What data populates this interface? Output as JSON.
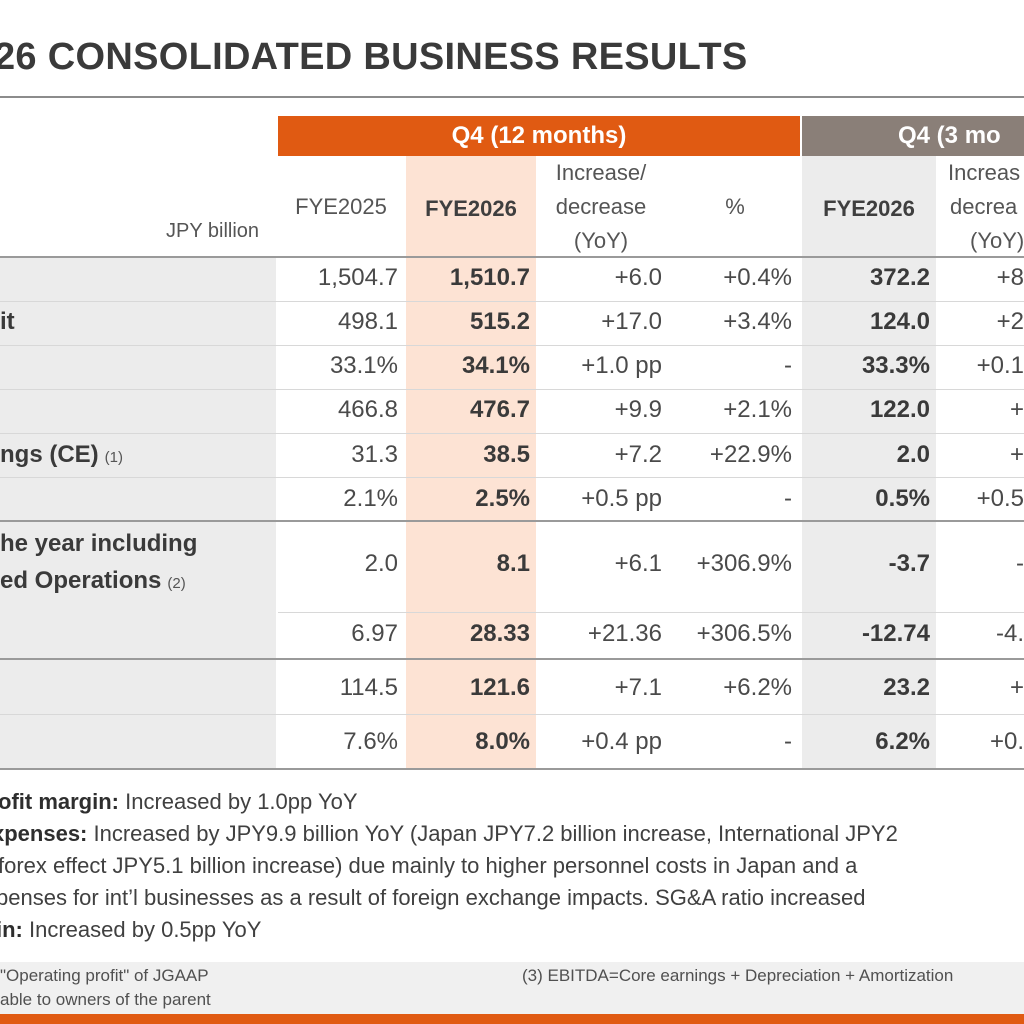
{
  "title": "26 CONSOLIDATED BUSINESS RESULTS",
  "table": {
    "group_12m": "Q4 (12 months)",
    "group_3m": "Q4 (3 mo",
    "unit": "JPY billion",
    "columns": {
      "fye2025": "FYE2025",
      "fye2026": "FYE2026",
      "incdec": [
        "Increase/",
        "decrease",
        "(YoY)"
      ],
      "pct": "%",
      "fye2026_3m": "FYE2026",
      "incdec_3m": [
        "Increas",
        "decrea",
        "(YoY)"
      ]
    },
    "rows": [
      {
        "label": "",
        "note": "",
        "fye2025": "1,504.7",
        "fye2026": "1,510.7",
        "yoy": "+6.0",
        "pct": "+0.4%",
        "q3m": "372.2",
        "q3m_yoy": "+8"
      },
      {
        "label": "it",
        "note": "",
        "fye2025": "498.1",
        "fye2026": "515.2",
        "yoy": "+17.0",
        "pct": "+3.4%",
        "q3m": "124.0",
        "q3m_yoy": "+2"
      },
      {
        "label": "",
        "note": "",
        "fye2025": "33.1%",
        "fye2026": "34.1%",
        "yoy": "+1.0 pp",
        "pct": "-",
        "q3m": "33.3%",
        "q3m_yoy": "+0.1"
      },
      {
        "label": "",
        "note": "",
        "fye2025": "466.8",
        "fye2026": "476.7",
        "yoy": "+9.9",
        "pct": "+2.1%",
        "q3m": "122.0",
        "q3m_yoy": "+"
      },
      {
        "label": "ngs (CE)",
        "note": "(1)",
        "fye2025": "31.3",
        "fye2026": "38.5",
        "yoy": "+7.2",
        "pct": "+22.9%",
        "q3m": "2.0",
        "q3m_yoy": "+"
      },
      {
        "label": "",
        "note": "",
        "fye2025": "2.1%",
        "fye2026": "2.5%",
        "yoy": "+0.5 pp",
        "pct": "-",
        "q3m": "0.5%",
        "q3m_yoy": "+0.5"
      },
      {
        "label": "he year including",
        "label2": "ed Operations",
        "note": "(2)",
        "fye2025": "2.0",
        "fye2026": "8.1",
        "yoy": "+6.1",
        "pct": "+306.9%",
        "q3m": "-3.7",
        "q3m_yoy": "-"
      },
      {
        "label": "",
        "note": "",
        "fye2025": "6.97",
        "fye2026": "28.33",
        "yoy": "+21.36",
        "pct": "+306.5%",
        "q3m": "-12.74",
        "q3m_yoy": "-4."
      },
      {
        "label": "",
        "note": "",
        "fye2025": "114.5",
        "fye2026": "121.6",
        "yoy": "+7.1",
        "pct": "+6.2%",
        "q3m": "23.2",
        "q3m_yoy": "+"
      },
      {
        "label": "",
        "note": "",
        "fye2025": "7.6%",
        "fye2026": "8.0%",
        "yoy": "+0.4 pp",
        "pct": "-",
        "q3m": "6.2%",
        "q3m_yoy": "+0."
      }
    ]
  },
  "notes": [
    {
      "bold": "ofit margin:",
      "text": " Increased by 1.0pp YoY"
    },
    {
      "bold": "xpenses:",
      "text": " Increased by JPY9.9 billion YoY (Japan JPY7.2 billion increase, International JPY2"
    },
    {
      "bold": "",
      "text": " forex effect JPY5.1 billion increase) due mainly to higher personnel costs in Japan and a"
    },
    {
      "bold": "",
      "text": "penses for int’l businesses as a result of foreign exchange impacts. SG&A ratio increased"
    },
    {
      "bold": "in:",
      "text": " Increased by 0.5pp YoY"
    }
  ],
  "footnotes": {
    "left1": "\"Operating profit\" of JGAAP",
    "left2": "able to owners of the parent",
    "right": "(3)  EBITDA=Core earnings + Depreciation + Amortization"
  },
  "colors": {
    "accent": "#e05a12",
    "gray_band": "#8a7f78",
    "highlight": "#fde3d4"
  }
}
